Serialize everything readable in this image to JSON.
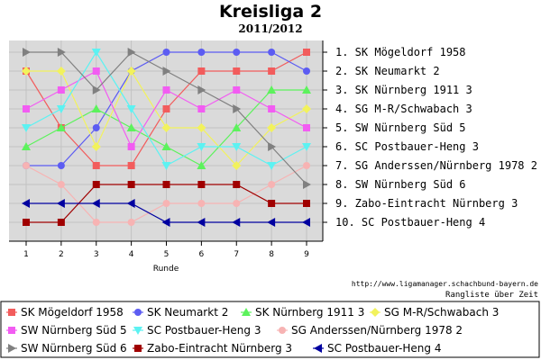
{
  "chart_data": {
    "type": "line",
    "title": "Kreisliga 2",
    "subtitle": "2011/2012",
    "xlabel": "Runde",
    "ylabel": "",
    "x": [
      1,
      2,
      3,
      4,
      5,
      6,
      7,
      8,
      9
    ],
    "ylim": [
      1,
      10
    ],
    "y_inverted": true,
    "grid": true,
    "legend_position": "bottom",
    "credit": "http://www.ligamanager.schachbund-bayern.de",
    "subcredit": "Rangliste über Zeit",
    "ranking": [
      "1. SK Mögeldorf 1958",
      "2. SK Neumarkt 2",
      "3. SK Nürnberg 1911 3",
      "4. SG M-R/Schwabach 3",
      "5. SW Nürnberg Süd 5",
      "6. SC Postbauer-Heng 3",
      "7. SG Anderssen/Nürnberg 1978 2",
      "8. SW Nürnberg Süd 6",
      "9. Zabo-Eintracht Nürnberg 3",
      "10. SC Postbauer-Heng 4"
    ],
    "series": [
      {
        "name": "SK Mögeldorf 1958",
        "color": "#f25c5c",
        "marker": "square",
        "values": [
          2,
          5,
          7,
          7,
          4,
          2,
          2,
          2,
          1
        ]
      },
      {
        "name": "SK Neumarkt 2",
        "color": "#5c5cf2",
        "marker": "circle",
        "values": [
          7,
          7,
          5,
          2,
          1,
          1,
          1,
          1,
          2
        ]
      },
      {
        "name": "SK Nürnberg 1911 3",
        "color": "#5cf25c",
        "marker": "triangle-up",
        "values": [
          6,
          5,
          4,
          5,
          6,
          7,
          5,
          3,
          3
        ]
      },
      {
        "name": "SG M-R/Schwabach 3",
        "color": "#f2f25c",
        "marker": "diamond",
        "values": [
          2,
          2,
          6,
          2,
          5,
          5,
          7,
          5,
          4
        ]
      },
      {
        "name": "SW Nürnberg Süd 5",
        "color": "#f25cf2",
        "marker": "square",
        "values": [
          4,
          3,
          2,
          6,
          3,
          4,
          3,
          4,
          5
        ]
      },
      {
        "name": "SC Postbauer-Heng 3",
        "color": "#5cf2f2",
        "marker": "triangle-down",
        "values": [
          5,
          4,
          1,
          4,
          7,
          6,
          6,
          7,
          6
        ]
      },
      {
        "name": "SG Anderssen/Nürnberg 1978 2",
        "color": "#f7b3b3",
        "marker": "circle",
        "values": [
          7,
          8,
          10,
          10,
          9,
          9,
          9,
          8,
          7
        ]
      },
      {
        "name": "SW Nürnberg Süd 6",
        "color": "#808080",
        "marker": "triangle-right",
        "values": [
          1,
          1,
          3,
          1,
          2,
          3,
          4,
          6,
          8
        ]
      },
      {
        "name": "Zabo-Eintracht Nürnberg 3",
        "color": "#a00000",
        "marker": "square",
        "values": [
          10,
          10,
          8,
          8,
          8,
          8,
          8,
          9,
          9
        ]
      },
      {
        "name": "SC Postbauer-Heng 4",
        "color": "#0000a0",
        "marker": "triangle-left",
        "values": [
          9,
          9,
          9,
          9,
          10,
          10,
          10,
          10,
          10
        ]
      }
    ]
  }
}
